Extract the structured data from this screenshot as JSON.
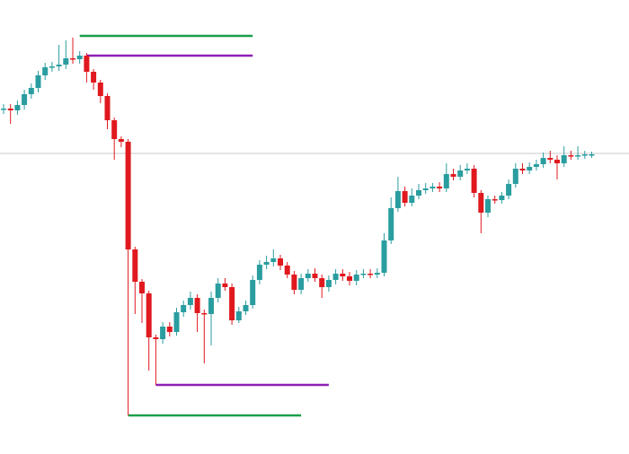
{
  "chart_data": {
    "type": "candlestick",
    "up_color": "#2a9d9f",
    "down_color": "#e0191f",
    "ylim": [
      0,
      500
    ],
    "open": [
      378,
      379,
      377,
      383,
      395,
      402,
      416,
      425,
      426,
      428,
      435,
      434,
      438,
      420,
      408,
      393,
      366,
      345,
      342,
      222,
      186,
      173,
      124,
      122,
      136,
      130,
      152,
      160,
      168,
      151,
      150,
      168,
      184,
      180,
      143,
      153,
      160,
      188,
      205,
      208,
      212,
      204,
      194,
      177,
      190,
      195,
      190,
      180,
      188,
      195,
      192,
      187,
      194,
      195,
      194,
      196,
      232,
      268,
      287,
      274,
      282,
      288,
      290,
      292,
      290,
      306,
      303,
      310,
      312,
      285,
      263,
      278,
      277,
      282,
      295,
      312,
      310,
      314,
      317,
      324,
      322,
      318,
      327,
      326,
      327,
      328
    ],
    "high": [
      384,
      384,
      388,
      400,
      407,
      421,
      430,
      431,
      450,
      455,
      458,
      443,
      441,
      423,
      411,
      396,
      369,
      348,
      345,
      225,
      189,
      176,
      127,
      141,
      141,
      157,
      165,
      175,
      172,
      155,
      175,
      190,
      190,
      184,
      158,
      165,
      193,
      210,
      215,
      222,
      216,
      208,
      198,
      195,
      200,
      201,
      194,
      193,
      200,
      200,
      197,
      199,
      200,
      200,
      201,
      240,
      280,
      303,
      292,
      290,
      295,
      296,
      296,
      297,
      318,
      312,
      316,
      318,
      316,
      288,
      282,
      282,
      286,
      300,
      318,
      318,
      319,
      322,
      330,
      332,
      327,
      337,
      332,
      337,
      332,
      331
    ],
    "low": [
      373,
      362,
      372,
      378,
      390,
      397,
      411,
      420,
      421,
      423,
      429,
      429,
      408,
      400,
      385,
      356,
      322,
      336,
      37,
      150,
      140,
      87,
      71,
      117,
      125,
      126,
      147,
      155,
      130,
      95,
      115,
      163,
      176,
      138,
      140,
      149,
      156,
      183,
      200,
      203,
      199,
      190,
      172,
      172,
      186,
      186,
      168,
      175,
      183,
      187,
      182,
      182,
      190,
      190,
      190,
      192,
      228,
      264,
      270,
      270,
      278,
      284,
      286,
      286,
      286,
      299,
      299,
      306,
      280,
      240,
      258,
      273,
      273,
      278,
      291,
      306,
      306,
      310,
      313,
      318,
      300,
      314,
      322,
      322,
      323,
      324
    ],
    "close": [
      379,
      377,
      383,
      395,
      402,
      416,
      425,
      426,
      428,
      435,
      434,
      438,
      420,
      408,
      393,
      366,
      345,
      342,
      222,
      186,
      173,
      124,
      122,
      136,
      130,
      152,
      160,
      168,
      151,
      150,
      168,
      184,
      180,
      143,
      153,
      160,
      188,
      205,
      208,
      212,
      204,
      194,
      177,
      190,
      195,
      190,
      180,
      188,
      195,
      192,
      187,
      194,
      195,
      194,
      196,
      232,
      268,
      287,
      274,
      282,
      288,
      290,
      292,
      290,
      306,
      303,
      310,
      312,
      285,
      263,
      278,
      277,
      282,
      295,
      312,
      310,
      314,
      317,
      324,
      322,
      318,
      327,
      326,
      327,
      328,
      328
    ],
    "levels": [
      {
        "value": 329,
        "color": "#c8c8c8"
      },
      {
        "value": 460,
        "color": "#1a9e4a",
        "from": 11,
        "to": 36
      },
      {
        "value": 438,
        "color": "#8e1fb5",
        "from": 12,
        "to": 36
      },
      {
        "value": 71,
        "color": "#8e1fb5",
        "from": 22,
        "to": 47
      },
      {
        "value": 37,
        "color": "#1a9e4a",
        "from": 18,
        "to": 43
      }
    ]
  }
}
